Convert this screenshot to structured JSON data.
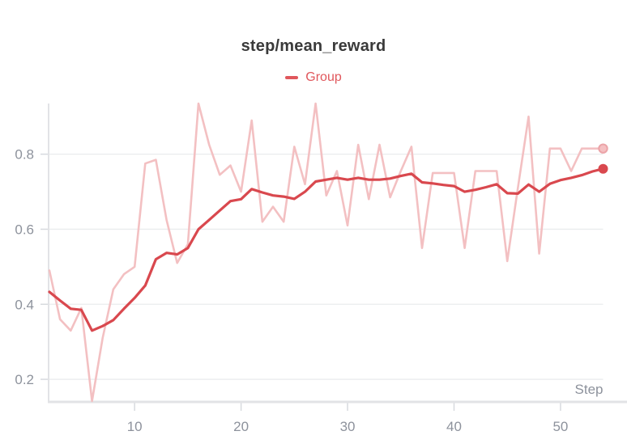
{
  "title": "step/mean_reward",
  "legend": {
    "label": "Group",
    "color": "#e0575c"
  },
  "axes": {
    "x_label": "Step",
    "x_ticks": [
      10,
      20,
      30,
      40,
      50
    ],
    "y_ticks": [
      0.2,
      0.4,
      0.6,
      0.8
    ]
  },
  "colors": {
    "smoothed_line": "#d9484e",
    "raw_line": "#f3c0c2",
    "raw_dot_fill": "#f5c0c2",
    "raw_dot_ring": "#eba4a8",
    "title_text": "#3a3a3a",
    "axis_text": "#8d929c",
    "gridline": "#eaecee",
    "axis_line": "#e2e3e6",
    "tick_mark": "#d7dade"
  },
  "chart_data": {
    "type": "line",
    "title": "step/mean_reward",
    "xlabel": "Step",
    "x": [
      2,
      3,
      4,
      5,
      6,
      7,
      8,
      9,
      10,
      11,
      12,
      13,
      14,
      15,
      16,
      17,
      18,
      19,
      20,
      21,
      22,
      23,
      24,
      25,
      26,
      27,
      28,
      29,
      30,
      31,
      32,
      33,
      34,
      35,
      36,
      37,
      38,
      39,
      40,
      41,
      42,
      43,
      44,
      45,
      46,
      47,
      48,
      49,
      50,
      51,
      52,
      53,
      54
    ],
    "series": [
      {
        "name": "Group (raw)",
        "values": [
          0.49,
          0.36,
          0.33,
          0.39,
          0.142,
          0.31,
          0.44,
          0.48,
          0.5,
          0.775,
          0.785,
          0.625,
          0.51,
          0.56,
          0.935,
          0.825,
          0.745,
          0.77,
          0.7,
          0.89,
          0.62,
          0.66,
          0.62,
          0.82,
          0.72,
          0.935,
          0.69,
          0.755,
          0.61,
          0.825,
          0.68,
          0.825,
          0.685,
          0.755,
          0.82,
          0.55,
          0.75,
          0.75,
          0.75,
          0.55,
          0.755,
          0.755,
          0.755,
          0.515,
          0.71,
          0.9,
          0.535,
          0.815,
          0.815,
          0.755,
          0.815,
          0.815,
          0.815
        ]
      },
      {
        "name": "Group (smoothed)",
        "values": [
          0.433,
          0.41,
          0.388,
          0.385,
          0.33,
          0.342,
          0.358,
          0.388,
          0.417,
          0.45,
          0.52,
          0.537,
          0.533,
          0.55,
          0.6,
          0.625,
          0.65,
          0.675,
          0.68,
          0.707,
          0.698,
          0.69,
          0.687,
          0.681,
          0.7,
          0.727,
          0.732,
          0.737,
          0.732,
          0.737,
          0.732,
          0.732,
          0.735,
          0.742,
          0.748,
          0.725,
          0.722,
          0.718,
          0.715,
          0.7,
          0.705,
          0.712,
          0.72,
          0.696,
          0.695,
          0.719,
          0.7,
          0.721,
          0.731,
          0.737,
          0.744,
          0.754,
          0.761
        ]
      }
    ],
    "x_ticks": [
      10,
      20,
      30,
      40,
      50
    ],
    "y_ticks": [
      0.2,
      0.4,
      0.6,
      0.8
    ],
    "xlim": [
      2,
      54
    ],
    "ylim": [
      0.142,
      0.935
    ],
    "grid": "horizontal-only",
    "legend_position": "top-center",
    "end_markers": {
      "raw": 0.815,
      "smoothed": 0.761
    }
  }
}
